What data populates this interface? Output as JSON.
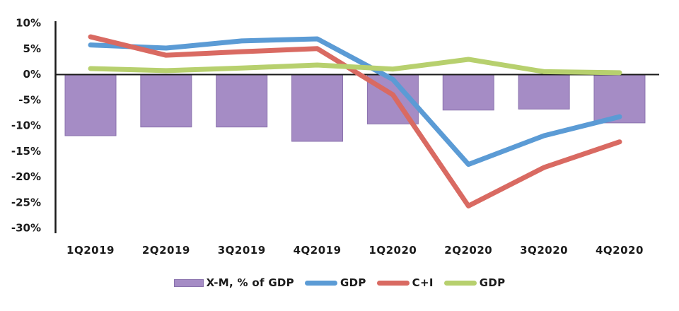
{
  "chart_data": {
    "type": "combo-bar-line",
    "categories": [
      "1Q2019",
      "2Q2019",
      "3Q2019",
      "4Q2019",
      "1Q2020",
      "2Q2020",
      "3Q2020",
      "4Q2020"
    ],
    "bar_series": {
      "name": "X-M, % of GDP",
      "values": [
        -12,
        -10.3,
        -10.3,
        -13.1,
        -9.7,
        -7,
        -6.8,
        -9.5
      ],
      "color": "#A58CC5",
      "border_color": "#8A72AD"
    },
    "line_series": [
      {
        "name": "GDP",
        "values": [
          5.7,
          5.1,
          6.5,
          6.9,
          -1,
          -17.6,
          -12,
          -8.3
        ],
        "color": "#5B9BD5"
      },
      {
        "name": "C+I",
        "values": [
          7.3,
          3.7,
          4.4,
          5,
          -4,
          -25.7,
          -18.2,
          -13.2
        ],
        "color": "#D96A62"
      },
      {
        "name": "GDP",
        "values": [
          1.1,
          0.7,
          1.2,
          1.8,
          1,
          2.9,
          0.5,
          0.3
        ],
        "color": "#B7D06E"
      }
    ],
    "y_ticks": [
      {
        "label": "10%",
        "value": 10
      },
      {
        "label": "5%",
        "value": 5
      },
      {
        "label": "0%",
        "value": 0
      },
      {
        "label": "-5%",
        "value": -5
      },
      {
        "label": "-10%",
        "value": -10
      },
      {
        "label": "-15%",
        "value": -15
      },
      {
        "label": "-20%",
        "value": -20
      },
      {
        "label": "-25%",
        "value": -25
      },
      {
        "label": "-30%",
        "value": -30
      }
    ],
    "ylim": [
      -30,
      10
    ],
    "grid": false,
    "legend_position": "bottom",
    "axis_color": "#1a1a1a"
  }
}
